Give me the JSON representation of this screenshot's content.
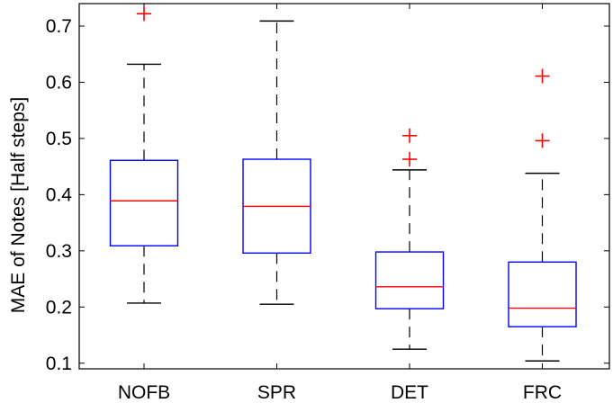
{
  "chart_data": {
    "type": "box",
    "title": "",
    "xlabel": "",
    "ylabel": "MAE of Notes [Half steps]",
    "ylim": [
      0.09,
      0.74
    ],
    "yticks": [
      0.1,
      0.2,
      0.3,
      0.4,
      0.5,
      0.6,
      0.7
    ],
    "ytick_labels": [
      "0.1",
      "0.2",
      "0.3",
      "0.4",
      "0.5",
      "0.6",
      "0.7"
    ],
    "categories": [
      "NOFB",
      "SPR",
      "DET",
      "FRC"
    ],
    "boxes": [
      {
        "name": "NOFB",
        "whisker_low": 0.207,
        "q1": 0.309,
        "median": 0.389,
        "q3": 0.461,
        "whisker_high": 0.632,
        "outliers": [
          0.722
        ]
      },
      {
        "name": "SPR",
        "whisker_low": 0.205,
        "q1": 0.296,
        "median": 0.379,
        "q3": 0.463,
        "whisker_high": 0.709,
        "outliers": []
      },
      {
        "name": "DET",
        "whisker_low": 0.125,
        "q1": 0.197,
        "median": 0.236,
        "q3": 0.298,
        "whisker_high": 0.444,
        "outliers": [
          0.463,
          0.505
        ]
      },
      {
        "name": "FRC",
        "whisker_low": 0.104,
        "q1": 0.165,
        "median": 0.198,
        "q3": 0.28,
        "whisker_high": 0.438,
        "outliers": [
          0.496,
          0.611
        ]
      }
    ],
    "grid": false,
    "colors": {
      "box": "#0000ff",
      "median": "#ff0000",
      "whisker": "#000000",
      "outlier": "#ff0000"
    }
  }
}
